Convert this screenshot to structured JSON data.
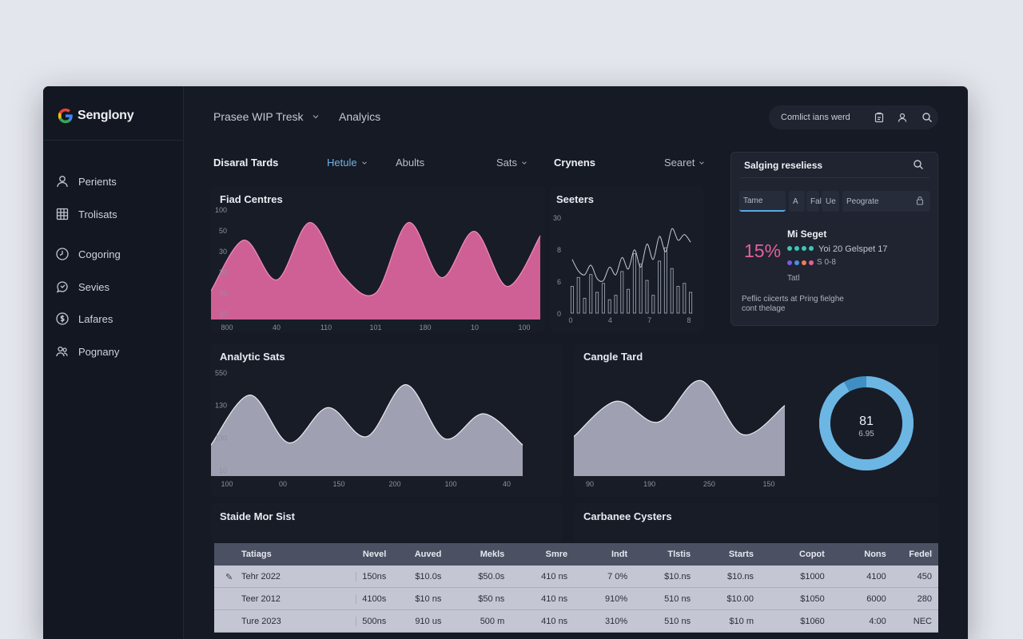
{
  "brand": {
    "name": "Senglony"
  },
  "sidebar": {
    "items": [
      {
        "label": "Perients",
        "icon": "user-icon"
      },
      {
        "label": "Trolisats",
        "icon": "table-icon"
      },
      {
        "label": "Cogoring",
        "icon": "clock-icon"
      },
      {
        "label": "Sevies",
        "icon": "chat-icon"
      },
      {
        "label": "Lafares",
        "icon": "dollar-icon"
      },
      {
        "label": "Pognany",
        "icon": "users-icon"
      }
    ]
  },
  "topbar": {
    "title": "Prasee WIP Tresk",
    "analytics": "Analyics",
    "pill_label": "Comlict ians werd",
    "icons": [
      "clipboard-icon",
      "user-icon",
      "search-icon"
    ]
  },
  "tabs": {
    "left": "Disaral Tards",
    "hetule": "Hetule",
    "abults": "Abults",
    "sats": "Sats",
    "crynens": "Crynens",
    "searet": "Searet"
  },
  "panels": {
    "fiad": {
      "title": "Fiad Centres"
    },
    "seeters": {
      "title": "Seeters"
    },
    "analytic": {
      "title": "Analytic Sats"
    },
    "cangle": {
      "title": "Cangle Tard"
    },
    "stable": {
      "title": "Staide Mor Sist"
    },
    "carbanee": {
      "title": "Carbanee Cysters"
    }
  },
  "side_panel": {
    "title": "Salging reseliess",
    "chips": [
      "Tame",
      "A",
      "Fal",
      "Ue",
      "Peograte"
    ],
    "percent": "15%",
    "subtitle": "Mi Seget",
    "line1": "Yoi 20 Gelspet 17",
    "line2": "S 0-8",
    "line3": "Tatl",
    "footer1": "Peflic ciicerts at Pring fielghe",
    "footer2": "cont thelage",
    "percent_color": "#e4609c",
    "dots": [
      "#3ec6b8",
      "#3ec6b8",
      "#3ec6b8",
      "#3ec6b8",
      "#7a5ce8",
      "#4a90e2",
      "#ef7d5a",
      "#e4609c"
    ]
  },
  "donut": {
    "value": "81",
    "sub": "6.95",
    "fraction": 0.92
  },
  "chart_data": [
    {
      "type": "area",
      "title": "Fiad Centres",
      "x_labels": [
        "800",
        "40",
        "110",
        "101",
        "180",
        "10",
        "100"
      ],
      "y_labels": [
        "100",
        "50",
        "30",
        "20",
        "10",
        "10"
      ],
      "values": [
        26,
        72,
        36,
        88,
        40,
        24,
        88,
        38,
        80,
        30,
        76
      ],
      "ylim": [
        0,
        100
      ],
      "color": "#d9649c"
    },
    {
      "type": "bar",
      "title": "Seeters",
      "x_labels": [
        "0",
        "4",
        "7",
        "8"
      ],
      "y_labels": [
        "30",
        "8",
        "6",
        "0"
      ],
      "values": [
        18,
        24,
        10,
        26,
        14,
        20,
        9,
        12,
        28,
        16,
        40,
        33,
        22,
        12,
        35,
        44,
        30,
        18,
        20,
        14
      ],
      "line": [
        56,
        44,
        40,
        50,
        36,
        34,
        48,
        40,
        58,
        46,
        66,
        48,
        72,
        56,
        80,
        64,
        88,
        76,
        82,
        74
      ],
      "ylim": [
        0,
        100
      ]
    },
    {
      "type": "area",
      "title": "Analytic Sats",
      "x_labels": [
        "100",
        "00",
        "150",
        "200",
        "100",
        "40"
      ],
      "y_labels": [
        "550",
        "130",
        "130",
        "10"
      ],
      "values": [
        30,
        78,
        32,
        66,
        38,
        88,
        36,
        60,
        30
      ],
      "ylim": [
        0,
        100
      ],
      "color": "#a7a9b9"
    },
    {
      "type": "area",
      "title": "Cangle Tard",
      "x_labels": [
        "90",
        "190",
        "250",
        "150"
      ],
      "values": [
        38,
        72,
        52,
        92,
        40,
        68
      ],
      "ylim": [
        0,
        100
      ],
      "color": "#a7a9b9"
    }
  ],
  "table": {
    "headers": [
      "Tatiags",
      "Nevel",
      "Auved",
      "Mekls",
      "Smre",
      "Indt",
      "Tlstis",
      "Starts",
      "Copot",
      "Nons",
      "Fedel"
    ],
    "rows": [
      [
        "Tehr 2022",
        "150ns",
        "$10.0s",
        "$50.0s",
        "410 ns",
        "7 0%",
        "$10.ns",
        "$10.ns",
        "$1000",
        "4100",
        "450"
      ],
      [
        "Teer 2012",
        "4100s",
        "$10 ns",
        "$50 ns",
        "410 ns",
        "910%",
        "510 ns",
        "$10.00",
        "$1050",
        "6000",
        "280"
      ],
      [
        "Ture 2023",
        "500ns",
        "910 us",
        "500 m",
        "410 ns",
        "310%",
        "510 ns",
        "$10 m",
        "$1060",
        "4:00",
        "NEC"
      ]
    ]
  }
}
